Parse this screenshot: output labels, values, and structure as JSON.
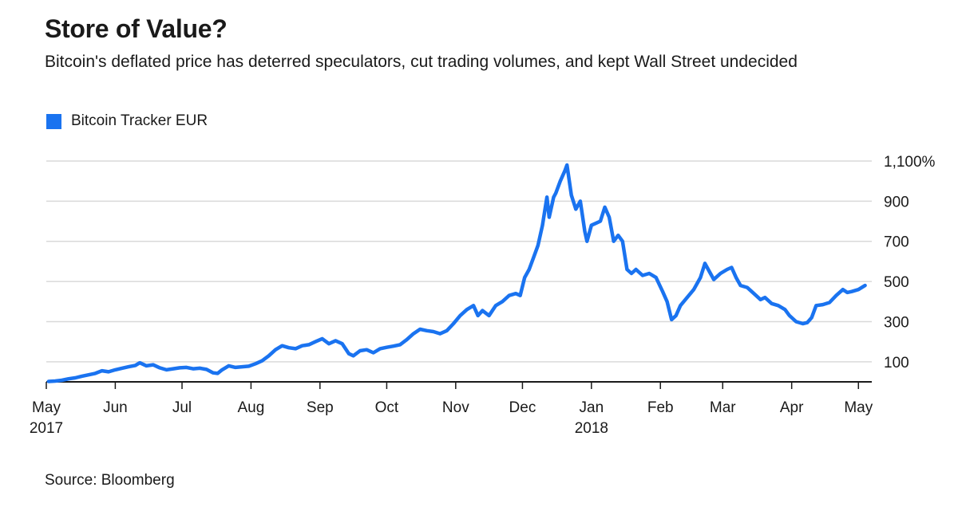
{
  "title": "Store of Value?",
  "subtitle": "Bitcoin's deflated price has deterred speculators, cut trading volumes, and kept Wall Street undecided",
  "source": "Source: Bloomberg",
  "colors": {
    "series": "#1a73f0",
    "grid": "#d9d9d9",
    "axis": "#1a1a1a"
  },
  "chart_data": {
    "type": "line",
    "title": "Store of Value?",
    "subtitle": "Bitcoin's deflated price has deterred speculators, cut trading volumes, and kept Wall Street undecided",
    "xlabel": "",
    "ylabel": "",
    "ylim": [
      0,
      1100
    ],
    "xlim": [
      "2017-05-01",
      "2018-05-07"
    ],
    "grid": true,
    "legend_position": "top-left",
    "y_ticks": [
      {
        "value": 100,
        "label": "100"
      },
      {
        "value": 300,
        "label": "300"
      },
      {
        "value": 500,
        "label": "500"
      },
      {
        "value": 700,
        "label": "700"
      },
      {
        "value": 900,
        "label": "900"
      },
      {
        "value": 1100,
        "label": "1,100%"
      }
    ],
    "x_ticks": [
      {
        "date": "2017-05-01",
        "label": "May",
        "sublabel": "2017"
      },
      {
        "date": "2017-06-01",
        "label": "Jun"
      },
      {
        "date": "2017-07-01",
        "label": "Jul"
      },
      {
        "date": "2017-08-01",
        "label": "Aug"
      },
      {
        "date": "2017-09-01",
        "label": "Sep"
      },
      {
        "date": "2017-10-01",
        "label": "Oct"
      },
      {
        "date": "2017-11-01",
        "label": "Nov"
      },
      {
        "date": "2017-12-01",
        "label": "Dec"
      },
      {
        "date": "2018-01-01",
        "label": "Jan",
        "sublabel": "2018"
      },
      {
        "date": "2018-02-01",
        "label": "Feb"
      },
      {
        "date": "2018-03-01",
        "label": "Mar"
      },
      {
        "date": "2018-04-01",
        "label": "Apr"
      },
      {
        "date": "2018-05-01",
        "label": "May"
      }
    ],
    "series": [
      {
        "name": "Bitcoin Tracker EUR",
        "color": "#1a73f0",
        "points": [
          [
            "2017-05-02",
            2
          ],
          [
            "2017-05-05",
            4
          ],
          [
            "2017-05-08",
            8
          ],
          [
            "2017-05-11",
            15
          ],
          [
            "2017-05-14",
            20
          ],
          [
            "2017-05-17",
            28
          ],
          [
            "2017-05-20",
            35
          ],
          [
            "2017-05-23",
            42
          ],
          [
            "2017-05-26",
            55
          ],
          [
            "2017-05-29",
            50
          ],
          [
            "2017-06-01",
            60
          ],
          [
            "2017-06-04",
            68
          ],
          [
            "2017-06-07",
            75
          ],
          [
            "2017-06-10",
            82
          ],
          [
            "2017-06-12",
            95
          ],
          [
            "2017-06-15",
            80
          ],
          [
            "2017-06-18",
            85
          ],
          [
            "2017-06-21",
            70
          ],
          [
            "2017-06-24",
            60
          ],
          [
            "2017-06-27",
            65
          ],
          [
            "2017-06-30",
            70
          ],
          [
            "2017-07-03",
            72
          ],
          [
            "2017-07-06",
            65
          ],
          [
            "2017-07-09",
            68
          ],
          [
            "2017-07-12",
            62
          ],
          [
            "2017-07-15",
            45
          ],
          [
            "2017-07-17",
            42
          ],
          [
            "2017-07-19",
            60
          ],
          [
            "2017-07-22",
            80
          ],
          [
            "2017-07-25",
            72
          ],
          [
            "2017-07-28",
            75
          ],
          [
            "2017-07-31",
            78
          ],
          [
            "2017-08-03",
            90
          ],
          [
            "2017-08-06",
            105
          ],
          [
            "2017-08-09",
            130
          ],
          [
            "2017-08-12",
            160
          ],
          [
            "2017-08-15",
            180
          ],
          [
            "2017-08-18",
            170
          ],
          [
            "2017-08-21",
            165
          ],
          [
            "2017-08-24",
            180
          ],
          [
            "2017-08-27",
            185
          ],
          [
            "2017-08-30",
            200
          ],
          [
            "2017-09-02",
            215
          ],
          [
            "2017-09-05",
            190
          ],
          [
            "2017-09-08",
            205
          ],
          [
            "2017-09-11",
            190
          ],
          [
            "2017-09-14",
            140
          ],
          [
            "2017-09-16",
            130
          ],
          [
            "2017-09-19",
            155
          ],
          [
            "2017-09-22",
            160
          ],
          [
            "2017-09-25",
            145
          ],
          [
            "2017-09-28",
            165
          ],
          [
            "2017-10-01",
            172
          ],
          [
            "2017-10-04",
            178
          ],
          [
            "2017-10-07",
            185
          ],
          [
            "2017-10-10",
            210
          ],
          [
            "2017-10-13",
            240
          ],
          [
            "2017-10-16",
            262
          ],
          [
            "2017-10-19",
            255
          ],
          [
            "2017-10-22",
            250
          ],
          [
            "2017-10-25",
            240
          ],
          [
            "2017-10-28",
            255
          ],
          [
            "2017-10-31",
            290
          ],
          [
            "2017-11-03",
            330
          ],
          [
            "2017-11-06",
            360
          ],
          [
            "2017-11-09",
            380
          ],
          [
            "2017-11-11",
            330
          ],
          [
            "2017-11-13",
            355
          ],
          [
            "2017-11-16",
            330
          ],
          [
            "2017-11-19",
            380
          ],
          [
            "2017-11-22",
            400
          ],
          [
            "2017-11-25",
            430
          ],
          [
            "2017-11-28",
            440
          ],
          [
            "2017-11-30",
            430
          ],
          [
            "2017-12-02",
            520
          ],
          [
            "2017-12-04",
            560
          ],
          [
            "2017-12-06",
            620
          ],
          [
            "2017-12-08",
            680
          ],
          [
            "2017-12-10",
            780
          ],
          [
            "2017-12-12",
            920
          ],
          [
            "2017-12-13",
            820
          ],
          [
            "2017-12-15",
            920
          ],
          [
            "2017-12-16",
            940
          ],
          [
            "2017-12-18",
            1000
          ],
          [
            "2017-12-20",
            1050
          ],
          [
            "2017-12-21",
            1080
          ],
          [
            "2017-12-23",
            930
          ],
          [
            "2017-12-25",
            860
          ],
          [
            "2017-12-27",
            900
          ],
          [
            "2017-12-29",
            750
          ],
          [
            "2017-12-30",
            700
          ],
          [
            "2018-01-01",
            780
          ],
          [
            "2018-01-03",
            790
          ],
          [
            "2018-01-05",
            800
          ],
          [
            "2018-01-07",
            870
          ],
          [
            "2018-01-09",
            820
          ],
          [
            "2018-01-11",
            700
          ],
          [
            "2018-01-13",
            730
          ],
          [
            "2018-01-15",
            700
          ],
          [
            "2018-01-17",
            560
          ],
          [
            "2018-01-19",
            540
          ],
          [
            "2018-01-21",
            560
          ],
          [
            "2018-01-24",
            530
          ],
          [
            "2018-01-27",
            540
          ],
          [
            "2018-01-30",
            520
          ],
          [
            "2018-02-02",
            450
          ],
          [
            "2018-02-04",
            400
          ],
          [
            "2018-02-06",
            310
          ],
          [
            "2018-02-08",
            330
          ],
          [
            "2018-02-10",
            380
          ],
          [
            "2018-02-13",
            420
          ],
          [
            "2018-02-16",
            460
          ],
          [
            "2018-02-19",
            520
          ],
          [
            "2018-02-21",
            590
          ],
          [
            "2018-02-23",
            550
          ],
          [
            "2018-02-25",
            510
          ],
          [
            "2018-02-28",
            540
          ],
          [
            "2018-03-03",
            560
          ],
          [
            "2018-03-05",
            570
          ],
          [
            "2018-03-07",
            520
          ],
          [
            "2018-03-09",
            480
          ],
          [
            "2018-03-12",
            470
          ],
          [
            "2018-03-15",
            440
          ],
          [
            "2018-03-18",
            410
          ],
          [
            "2018-03-20",
            420
          ],
          [
            "2018-03-23",
            390
          ],
          [
            "2018-03-26",
            380
          ],
          [
            "2018-03-29",
            360
          ],
          [
            "2018-03-31",
            330
          ],
          [
            "2018-04-03",
            300
          ],
          [
            "2018-04-06",
            290
          ],
          [
            "2018-04-08",
            295
          ],
          [
            "2018-04-10",
            320
          ],
          [
            "2018-04-12",
            380
          ],
          [
            "2018-04-15",
            385
          ],
          [
            "2018-04-18",
            395
          ],
          [
            "2018-04-21",
            430
          ],
          [
            "2018-04-24",
            460
          ],
          [
            "2018-04-26",
            445
          ],
          [
            "2018-04-28",
            450
          ],
          [
            "2018-05-01",
            460
          ],
          [
            "2018-05-04",
            480
          ]
        ]
      }
    ]
  }
}
